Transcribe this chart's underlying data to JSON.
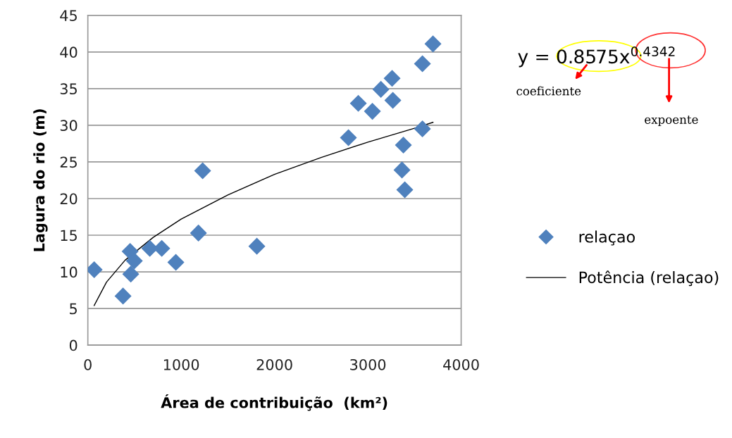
{
  "chart_data": {
    "type": "scatter",
    "xlabel": "Área de contribuição  (km²)",
    "ylabel": "Lagura do rio (m)",
    "xlim": [
      0,
      4000
    ],
    "xticks": [
      0,
      1000,
      2000,
      3000,
      4000
    ],
    "ylim": [
      0,
      45
    ],
    "yticks": [
      0,
      5,
      10,
      15,
      20,
      25,
      30,
      35,
      40,
      45
    ],
    "grid": "y",
    "legend": "right",
    "marker": "diamond",
    "series": [
      {
        "name": "relaçao",
        "color": "#4f81bd",
        "x": [
          68,
          377,
          453,
          460,
          498,
          664,
          792,
          943,
          1185,
          1230,
          1811,
          2792,
          2898,
          3049,
          3140,
          3260,
          3268,
          3381,
          3366,
          3396,
          3585,
          3585,
          3698
        ],
        "values": [
          10.3,
          6.7,
          12.8,
          9.7,
          11.5,
          13.2,
          13.2,
          11.3,
          15.3,
          23.8,
          13.5,
          28.3,
          33.0,
          31.9,
          34.9,
          36.4,
          33.4,
          27.3,
          23.9,
          21.2,
          38.4,
          29.5,
          41.1
        ]
      },
      {
        "name": "Potência (relaçao)",
        "type": "line",
        "color": "#000000",
        "marker": "none",
        "x": [
          68,
          200,
          400,
          700,
          1000,
          1500,
          2000,
          2500,
          3000,
          3500,
          3698
        ],
        "values": [
          5.4,
          8.6,
          11.6,
          14.7,
          17.2,
          20.5,
          23.3,
          25.6,
          27.7,
          29.6,
          30.4
        ]
      }
    ],
    "annotations": [
      "y = 0.8575x$^{0.4342}$",
      "coeficiente",
      "expoente"
    ]
  }
}
